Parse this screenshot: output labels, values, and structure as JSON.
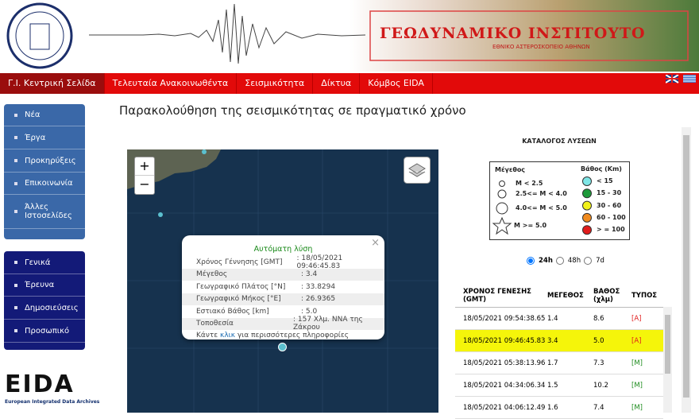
{
  "header": {
    "title": "ΓΕΩΔΥΝΑΜΙΚΟ ΙΝΣΤΙΤΟΥΤΟ",
    "subtitle": "ΕΘΝΙΚΟ ΑΣΤΕΡΟΣΚΟΠΕΙΟ ΑΘΗΝΩΝ"
  },
  "nav": [
    "Γ.Ι. Κεντρική Σελίδα",
    "Τελευταία Ανακοινωθέντα",
    "Σεισμικότητα",
    "Δίκτυα",
    "Κόμβος EIDA"
  ],
  "sidebar": {
    "group1": [
      "Νέα",
      "Έργα",
      "Προκηρύξεις",
      "Επικοινωνία",
      "Άλλες Ιστοσελίδες"
    ],
    "group2": [
      "Γενικά",
      "Έρευνα",
      "Δημοσιεύσεις",
      "Προσωπικό"
    ]
  },
  "eida": {
    "logo": "EIDA",
    "caption": "European Integrated Data Archives"
  },
  "page_title": "Παρακολούθηση της σεισμικότητας σε πραγματικό χρόνο",
  "map": {
    "zoom_in": "+",
    "zoom_out": "−",
    "popup": {
      "heading": "Αυτόματη λύση",
      "close": "×",
      "rows": [
        [
          "Χρόνος Γέννησης [GMT]",
          ": 18/05/2021 09:46:45.83"
        ],
        [
          "Μέγεθος",
          ": 3.4"
        ],
        [
          "Γεωγραφικό Πλάτος [°N]",
          ": 33.8294"
        ],
        [
          "Γεωγραφικό Μήκος [°E]",
          ": 26.9365"
        ],
        [
          "Εστιακό Βάθος [km]",
          ": 5.0"
        ],
        [
          "Τοποθεσία",
          ": 157 Χλμ. ΝΝΑ της Ζάκρου"
        ]
      ],
      "footer": {
        "before": "Κάντε ",
        "link": "κλικ",
        "after": " για περισσότερες πληροφορίες"
      }
    }
  },
  "catalog": {
    "title": "ΚΑΤΑΛΟΓΟΣ ΛΥΣΕΩΝ",
    "legend": {
      "magnitude_title": "Μέγεθος",
      "magnitudes": [
        "M < 2.5",
        "2.5<= M < 4.0",
        "4.0<= M < 5.0",
        "M >= 5.0"
      ],
      "depth_title": "Βάθος (Km)",
      "depths": [
        {
          "label": "< 15",
          "color": "#7fe6e6"
        },
        {
          "label": "15 - 30",
          "color": "#1e9a3a"
        },
        {
          "label": "30 - 60",
          "color": "#f2f21a"
        },
        {
          "label": "60 - 100",
          "color": "#f08a1e"
        },
        {
          "label": "> = 100",
          "color": "#e01c1c"
        }
      ]
    },
    "periods": [
      "24h",
      "48h",
      "7d"
    ],
    "selected_period": 0,
    "table": {
      "columns": [
        "ΧΡΟΝΟΣ ΓΕΝΕΣΗΣ (GMT)",
        "ΜΕΓΕΘΟΣ",
        "ΒΑΘΟΣ (χλμ)",
        "ΤΥΠΟΣ"
      ],
      "rows": [
        [
          "18/05/2021 09:54:38.65",
          "1.4",
          "8.6",
          "[A]"
        ],
        [
          "18/05/2021 09:46:45.83",
          "3.4",
          "5.0",
          "[A]"
        ],
        [
          "18/05/2021 05:38:13.96",
          "1.7",
          "7.3",
          "[M]"
        ],
        [
          "18/05/2021 04:34:06.34",
          "1.5",
          "10.2",
          "[M]"
        ],
        [
          "18/05/2021 04:06:12.49",
          "1.6",
          "7.4",
          "[M]"
        ]
      ],
      "highlighted_row": 1
    }
  }
}
